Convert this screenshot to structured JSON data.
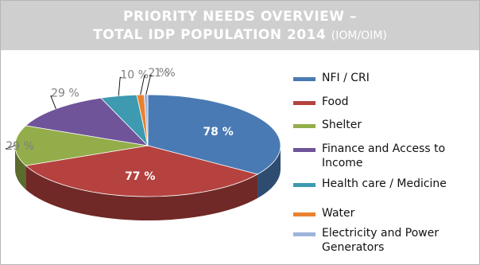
{
  "header": {
    "line1": "PRIORITY NEEDS OVERVIEW –",
    "line2": "TOTAL IDP POPULATION 2014",
    "source": "(IOM/OIM)"
  },
  "chart_data": {
    "type": "pie",
    "categories": [
      "NFI / CRI",
      "Food",
      "Shelter",
      "Finance and Access to Income",
      "Health care / Medicine",
      "Water",
      "Electricity and Power Generators"
    ],
    "values": [
      78,
      77,
      29,
      29,
      10,
      2,
      1
    ],
    "data_labels": [
      "78 %",
      "77 %",
      "29 %",
      "29 %",
      "10 %",
      "2 %",
      "1 %"
    ],
    "colors": [
      "#4a7ab4",
      "#b5423f",
      "#93ad4a",
      "#70549a",
      "#3d9ab0",
      "#e9822f",
      "#9fb4dd"
    ],
    "legend_placement": "right"
  }
}
